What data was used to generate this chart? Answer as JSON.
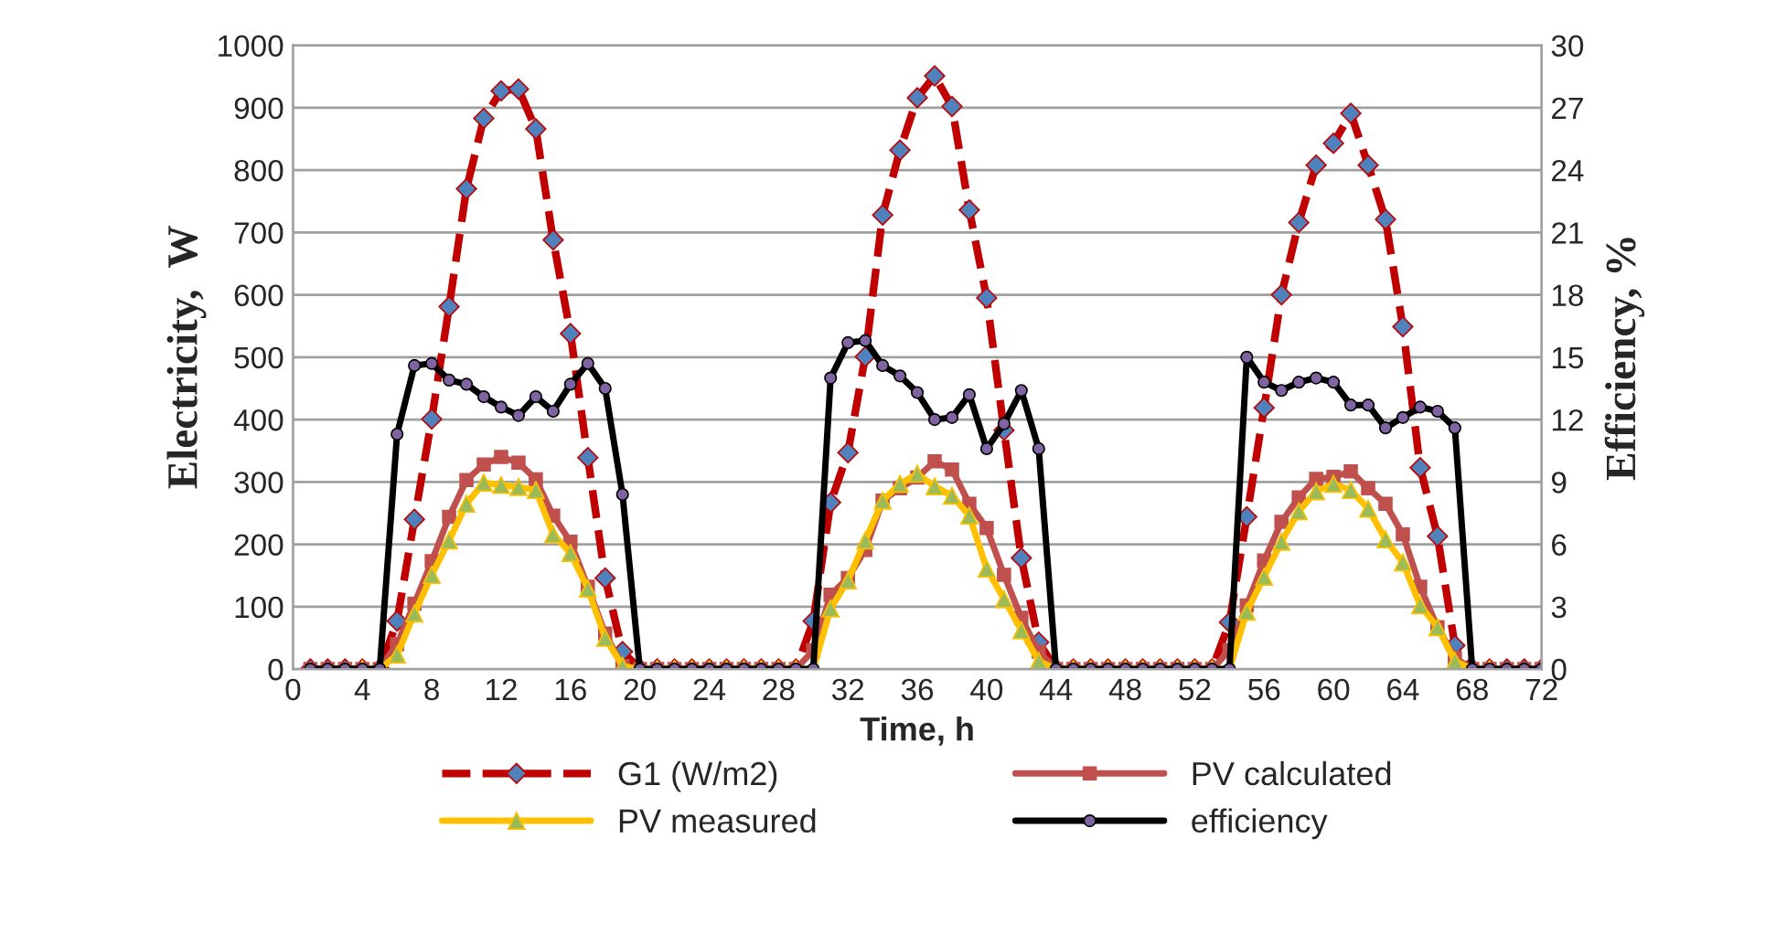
{
  "chart_data": {
    "type": "line",
    "xlabel": "Time, h",
    "ylabel": "Electricity,  W",
    "y2label": "Efficiency, %",
    "x": [
      1,
      2,
      3,
      4,
      5,
      6,
      7,
      8,
      9,
      10,
      11,
      12,
      13,
      14,
      15,
      16,
      17,
      18,
      19,
      20,
      21,
      22,
      23,
      24,
      25,
      26,
      27,
      28,
      29,
      30,
      31,
      32,
      33,
      34,
      35,
      36,
      37,
      38,
      39,
      40,
      41,
      42,
      43,
      44,
      45,
      46,
      47,
      48,
      49,
      50,
      51,
      52,
      53,
      54,
      55,
      56,
      57,
      58,
      59,
      60,
      61,
      62,
      63,
      64,
      65,
      66,
      67,
      68,
      69,
      70,
      71,
      72
    ],
    "xlim": [
      0,
      72
    ],
    "xticks": [
      0,
      4,
      8,
      12,
      16,
      20,
      24,
      28,
      32,
      36,
      40,
      44,
      48,
      52,
      56,
      60,
      64,
      68,
      72
    ],
    "ylim": [
      0,
      1000
    ],
    "yticks": [
      0,
      100,
      200,
      300,
      400,
      500,
      600,
      700,
      800,
      900,
      1000
    ],
    "y2lim": [
      0,
      30
    ],
    "y2ticks": [
      0,
      3,
      6,
      9,
      12,
      15,
      18,
      21,
      24,
      27,
      30
    ],
    "grid": "y",
    "legend": "bottom",
    "series": [
      {
        "name": "G1 (W/m2)",
        "color": "#c00000",
        "marker": "diamond",
        "line_style": "dashed",
        "values": [
          0,
          0,
          0,
          0,
          0,
          77,
          240,
          401,
          581,
          770,
          883,
          927,
          930,
          866,
          688,
          538,
          339,
          146,
          28,
          0,
          0,
          0,
          0,
          0,
          0,
          0,
          0,
          0,
          0,
          77,
          267,
          347,
          501,
          728,
          832,
          916,
          951,
          902,
          736,
          595,
          383,
          178,
          43,
          0,
          0,
          0,
          0,
          0,
          0,
          0,
          0,
          0,
          0,
          75,
          244,
          419,
          600,
          716,
          808,
          843,
          891,
          808,
          721,
          549,
          323,
          213,
          38,
          0,
          0,
          0,
          0,
          0
        ]
      },
      {
        "name": "PV calculated",
        "color": "#c0504d",
        "marker": "square",
        "line_style": "solid",
        "values": [
          0,
          0,
          0,
          0,
          0,
          40,
          105,
          173,
          244,
          303,
          328,
          340,
          331,
          304,
          246,
          204,
          132,
          57,
          5,
          0,
          0,
          0,
          0,
          0,
          0,
          0,
          0,
          0,
          0,
          30,
          119,
          146,
          191,
          270,
          290,
          307,
          333,
          320,
          265,
          226,
          151,
          82,
          28,
          0,
          0,
          0,
          0,
          0,
          0,
          0,
          0,
          0,
          0,
          30,
          102,
          174,
          236,
          275,
          305,
          308,
          317,
          290,
          265,
          216,
          132,
          67,
          18,
          0,
          0,
          0,
          0,
          0
        ]
      },
      {
        "name": "PV measured",
        "color": "#ffc000",
        "marker": "triangle",
        "line_style": "solid",
        "values": [
          null,
          null,
          null,
          0,
          0,
          23,
          89,
          151,
          206,
          265,
          299,
          295,
          292,
          287,
          216,
          186,
          129,
          50,
          5,
          0,
          0,
          0,
          0,
          0,
          0,
          0,
          0,
          0,
          0,
          0,
          97,
          142,
          206,
          270,
          297,
          313,
          293,
          278,
          246,
          161,
          112,
          62,
          13,
          0,
          0,
          0,
          0,
          0,
          0,
          0,
          0,
          0,
          0,
          0,
          92,
          148,
          204,
          253,
          285,
          297,
          287,
          257,
          208,
          171,
          102,
          67,
          13,
          0,
          0,
          null,
          null,
          null
        ]
      },
      {
        "name": "efficiency",
        "color": "#000000",
        "marker": "circle",
        "line_style": "solid",
        "axis": "y2",
        "values": [
          0,
          0,
          0,
          0,
          0,
          11.3,
          14.6,
          14.7,
          13.9,
          13.7,
          13.1,
          12.6,
          12.2,
          13.1,
          12.4,
          13.7,
          14.7,
          13.5,
          8.4,
          0,
          0,
          0,
          0,
          0,
          0,
          0,
          0,
          0,
          0,
          0,
          14.0,
          15.7,
          15.8,
          14.6,
          14.1,
          13.3,
          12.0,
          12.1,
          13.2,
          10.6,
          11.8,
          13.4,
          10.6,
          0,
          0,
          0,
          0,
          0,
          0,
          0,
          0,
          0,
          0,
          0,
          15.0,
          13.8,
          13.4,
          13.8,
          14.0,
          13.8,
          12.7,
          12.7,
          11.6,
          12.1,
          12.6,
          12.4,
          11.6,
          0,
          0,
          0,
          0,
          0
        ]
      }
    ]
  }
}
